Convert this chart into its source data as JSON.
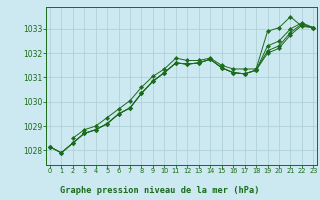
{
  "title": "Graphe pression niveau de la mer (hPa)",
  "bg_color": "#cce8f0",
  "plot_bg_color": "#cce8f0",
  "grid_color": "#b0d0d8",
  "line_color": "#1a6b1a",
  "marker_color": "#1a6b1a",
  "x_ticks": [
    0,
    1,
    2,
    3,
    4,
    5,
    6,
    7,
    8,
    9,
    10,
    11,
    12,
    13,
    14,
    15,
    16,
    17,
    18,
    19,
    20,
    21,
    22,
    23
  ],
  "y_ticks": [
    1028,
    1029,
    1030,
    1031,
    1032,
    1033
  ],
  "ylim": [
    1027.4,
    1033.9
  ],
  "xlim": [
    -0.3,
    23.3
  ],
  "series": [
    [
      1028.15,
      null,
      1028.5,
      1028.85,
      1029.0,
      1029.35,
      1029.7,
      1030.05,
      1030.6,
      1031.05,
      1031.35,
      1031.8,
      1031.7,
      1031.7,
      1031.8,
      1031.5,
      1031.35,
      1031.35,
      1031.35,
      1032.9,
      1033.05,
      1033.5,
      1033.1,
      1033.05
    ],
    [
      1028.15,
      1027.9,
      1028.3,
      1028.7,
      1028.85,
      1029.1,
      1029.5,
      1029.75,
      1030.35,
      1030.85,
      1031.2,
      1031.6,
      1031.55,
      1031.6,
      1031.75,
      1031.4,
      1031.2,
      1031.15,
      1031.3,
      1032.3,
      1032.5,
      1033.0,
      1033.25,
      1033.05
    ],
    [
      1028.15,
      1027.9,
      1028.3,
      1028.7,
      1028.85,
      1029.1,
      1029.5,
      1029.75,
      1030.35,
      1030.85,
      1031.2,
      1031.6,
      1031.55,
      1031.6,
      1031.75,
      1031.4,
      1031.2,
      1031.15,
      1031.3,
      1032.1,
      1032.3,
      1032.85,
      1033.2,
      1033.05
    ],
    [
      1028.15,
      1027.9,
      1028.3,
      1028.7,
      1028.85,
      1029.1,
      1029.5,
      1029.75,
      1030.35,
      1030.85,
      1031.2,
      1031.6,
      1031.55,
      1031.6,
      1031.75,
      1031.4,
      1031.2,
      1031.15,
      1031.3,
      1032.0,
      1032.2,
      1032.75,
      1033.15,
      1033.05
    ]
  ],
  "series_upper": [
    1028.15,
    null,
    1028.5,
    1028.85,
    1029.0,
    1029.35,
    1029.7,
    1030.05,
    1030.6,
    1031.05,
    1031.35,
    1031.8,
    1031.7,
    1031.7,
    1031.8,
    1031.5,
    1031.35,
    1031.35,
    1031.35,
    1032.9,
    1033.05,
    1033.5,
    1033.1,
    1033.05
  ]
}
